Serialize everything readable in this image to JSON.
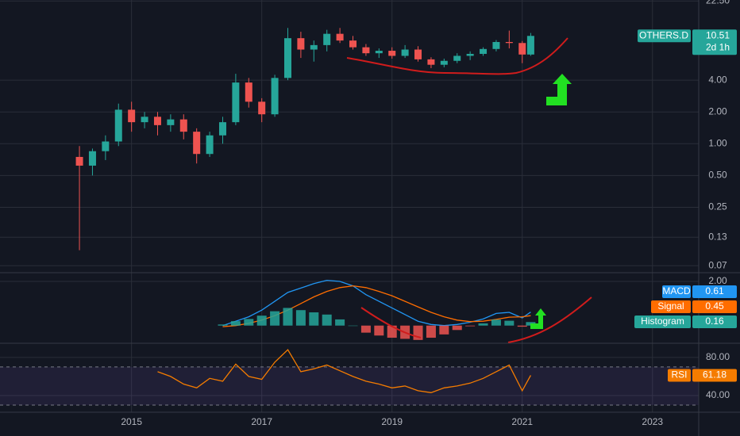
{
  "chart_data": [
    {
      "type": "candlestick",
      "name": "OTHERS.D",
      "countdown": "2d 1h",
      "log_scale": true,
      "grid": true,
      "up_color": "#26a69a",
      "down_color": "#ef5350",
      "x": [
        2014.2,
        2014.4,
        2014.6,
        2014.8,
        2015.0,
        2015.2,
        2015.4,
        2015.6,
        2015.8,
        2016.0,
        2016.2,
        2016.4,
        2016.6,
        2016.8,
        2017.0,
        2017.2,
        2017.4,
        2017.6,
        2017.8,
        2018.0,
        2018.2,
        2018.4,
        2018.6,
        2018.8,
        2019.0,
        2019.2,
        2019.4,
        2019.6,
        2019.8,
        2020.0,
        2020.2,
        2020.4,
        2020.6,
        2020.8,
        2021.0,
        2021.13
      ],
      "open": [
        0.75,
        0.62,
        0.85,
        1.05,
        2.1,
        1.6,
        1.8,
        1.5,
        1.7,
        1.3,
        0.8,
        1.2,
        1.6,
        3.8,
        2.5,
        1.9,
        4.2,
        10.0,
        7.8,
        8.6,
        11.0,
        9.5,
        8.2,
        7.2,
        7.6,
        6.8,
        7.8,
        6.3,
        5.6,
        6.1,
        6.8,
        7.1,
        7.9,
        9.2,
        9.0,
        7.0
      ],
      "high": [
        0.95,
        0.9,
        1.2,
        2.4,
        2.5,
        2.0,
        2.0,
        1.9,
        1.9,
        1.4,
        1.3,
        1.8,
        4.6,
        4.2,
        2.7,
        4.5,
        12.5,
        11.5,
        9.5,
        12.0,
        12.5,
        10.5,
        8.8,
        8.0,
        8.2,
        8.6,
        8.4,
        6.6,
        6.4,
        7.2,
        7.5,
        8.2,
        9.6,
        11.8,
        9.4,
        11.2
      ],
      "low": [
        0.098,
        0.5,
        0.7,
        0.95,
        1.3,
        1.4,
        1.2,
        1.3,
        1.1,
        0.65,
        0.75,
        1.0,
        1.5,
        2.2,
        1.6,
        1.8,
        4.0,
        6.5,
        6.0,
        7.5,
        9.0,
        7.8,
        6.8,
        6.5,
        6.4,
        6.5,
        6.0,
        5.2,
        5.3,
        5.8,
        6.2,
        6.8,
        7.5,
        8.0,
        5.8,
        6.8
      ],
      "close": [
        0.62,
        0.85,
        1.05,
        2.1,
        1.6,
        1.8,
        1.5,
        1.7,
        1.3,
        0.8,
        1.2,
        1.6,
        3.8,
        2.5,
        1.9,
        4.2,
        10.0,
        7.8,
        8.6,
        11.0,
        9.5,
        8.2,
        7.2,
        7.6,
        6.8,
        7.8,
        6.3,
        5.6,
        6.1,
        6.8,
        7.1,
        7.9,
        9.2,
        9.0,
        7.0,
        10.51
      ],
      "xlim": [
        2012.98,
        2023.71
      ],
      "xticks": [
        2015,
        2017,
        2019,
        2021,
        2023
      ],
      "ylim": [
        0.06,
        23
      ],
      "yticks": [
        {
          "value": 22.5,
          "label": "22.50"
        },
        {
          "value": 4,
          "label": "4.00"
        },
        {
          "value": 2,
          "label": "2.00"
        },
        {
          "value": 1,
          "label": "1.00"
        },
        {
          "value": 0.5,
          "label": "0.50"
        },
        {
          "value": 0.25,
          "label": "0.25"
        },
        {
          "value": 0.13,
          "label": "0.13"
        },
        {
          "value": 0.07,
          "label": "0.07"
        }
      ]
    },
    {
      "type": "line",
      "x": [
        2016.4,
        2016.6,
        2016.8,
        2017.0,
        2017.2,
        2017.4,
        2017.6,
        2017.8,
        2018.0,
        2018.2,
        2018.4,
        2018.6,
        2018.8,
        2019.0,
        2019.2,
        2019.4,
        2019.6,
        2019.8,
        2020.0,
        2020.2,
        2020.4,
        2020.6,
        2020.8,
        2021.0,
        2021.13
      ],
      "series": [
        {
          "name": "MACD",
          "color": "#2196f3",
          "values": [
            0.0,
            0.2,
            0.4,
            0.7,
            1.1,
            1.5,
            1.7,
            1.9,
            2.05,
            2.0,
            1.8,
            1.4,
            1.1,
            0.8,
            0.5,
            0.2,
            0.05,
            0.0,
            0.05,
            0.15,
            0.3,
            0.55,
            0.6,
            0.35,
            0.61
          ]
        },
        {
          "name": "Signal",
          "color": "#ff6d00",
          "values": [
            -0.05,
            0.0,
            0.1,
            0.25,
            0.45,
            0.7,
            1.0,
            1.3,
            1.55,
            1.72,
            1.8,
            1.72,
            1.55,
            1.35,
            1.1,
            0.85,
            0.6,
            0.4,
            0.25,
            0.18,
            0.2,
            0.28,
            0.38,
            0.4,
            0.45
          ]
        },
        {
          "name": "Histogram",
          "type": "bar",
          "color": "#26a69a",
          "negative_color": "#ef5350",
          "values": [
            0.05,
            0.2,
            0.3,
            0.45,
            0.65,
            0.8,
            0.7,
            0.6,
            0.5,
            0.28,
            0.0,
            -0.32,
            -0.45,
            -0.55,
            -0.6,
            -0.65,
            -0.55,
            -0.4,
            -0.2,
            -0.03,
            0.1,
            0.27,
            0.22,
            -0.05,
            0.16
          ]
        }
      ],
      "ylim": [
        -0.8,
        2.36
      ],
      "yticks": [
        {
          "value": 2,
          "label": "2.00"
        }
      ]
    },
    {
      "type": "line",
      "x": [
        2015.4,
        2015.6,
        2015.8,
        2016.0,
        2016.2,
        2016.4,
        2016.6,
        2016.8,
        2017.0,
        2017.2,
        2017.4,
        2017.6,
        2017.8,
        2018.0,
        2018.2,
        2018.4,
        2018.6,
        2018.8,
        2019.0,
        2019.2,
        2019.4,
        2019.6,
        2019.8,
        2020.0,
        2020.2,
        2020.4,
        2020.6,
        2020.8,
        2021.0,
        2021.13
      ],
      "series": [
        {
          "name": "RSI",
          "color": "#f57c00",
          "values": [
            65,
            60,
            52,
            48,
            58,
            55,
            73,
            60,
            57,
            75,
            88,
            65,
            68,
            72,
            66,
            60,
            55,
            52,
            48,
            50,
            45,
            43,
            48,
            50,
            53,
            58,
            65,
            72,
            45,
            61.18
          ]
        }
      ],
      "band": [
        30,
        70
      ],
      "band_color": "#7e57c2",
      "ylim": [
        22.5,
        94
      ],
      "yticks": [
        {
          "value": 80,
          "label": "80.00"
        },
        {
          "value": 40,
          "label": "40.00"
        }
      ]
    }
  ]
}
